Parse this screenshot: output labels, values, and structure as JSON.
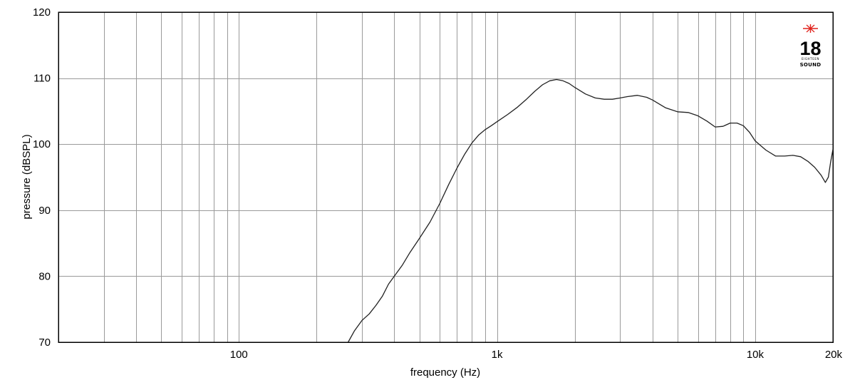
{
  "chart_data": {
    "type": "line",
    "xlabel": "frequency (Hz)",
    "ylabel": "pressure (dBSPL)",
    "x_scale": "log",
    "xlim": [
      20,
      20000
    ],
    "ylim": [
      70,
      120
    ],
    "grid": true,
    "x_tick_labels": [
      {
        "value": 100,
        "label": "100"
      },
      {
        "value": 1000,
        "label": "1k"
      },
      {
        "value": 10000,
        "label": "10k"
      },
      {
        "value": 20000,
        "label": "20k"
      }
    ],
    "y_tick_labels": [
      {
        "value": 70,
        "label": "70"
      },
      {
        "value": 80,
        "label": "80"
      },
      {
        "value": 90,
        "label": "90"
      },
      {
        "value": 100,
        "label": "100"
      },
      {
        "value": 110,
        "label": "110"
      },
      {
        "value": 120,
        "label": "120"
      }
    ],
    "series": [
      {
        "color": "#222222",
        "points": [
          [
            265,
            70.0
          ],
          [
            280,
            71.7
          ],
          [
            300,
            73.3
          ],
          [
            320,
            74.3
          ],
          [
            340,
            75.6
          ],
          [
            360,
            77.0
          ],
          [
            380,
            78.8
          ],
          [
            400,
            80.0
          ],
          [
            430,
            81.7
          ],
          [
            460,
            83.6
          ],
          [
            500,
            85.7
          ],
          [
            550,
            88.2
          ],
          [
            600,
            91.0
          ],
          [
            650,
            93.9
          ],
          [
            700,
            96.4
          ],
          [
            750,
            98.5
          ],
          [
            800,
            100.2
          ],
          [
            850,
            101.4
          ],
          [
            900,
            102.2
          ],
          [
            950,
            102.8
          ],
          [
            1000,
            103.4
          ],
          [
            1100,
            104.5
          ],
          [
            1200,
            105.6
          ],
          [
            1300,
            106.8
          ],
          [
            1400,
            108.0
          ],
          [
            1500,
            109.0
          ],
          [
            1600,
            109.6
          ],
          [
            1700,
            109.8
          ],
          [
            1800,
            109.6
          ],
          [
            1900,
            109.2
          ],
          [
            2000,
            108.6
          ],
          [
            2200,
            107.6
          ],
          [
            2400,
            107.0
          ],
          [
            2600,
            106.8
          ],
          [
            2800,
            106.8
          ],
          [
            3000,
            107.0
          ],
          [
            3200,
            107.2
          ],
          [
            3500,
            107.4
          ],
          [
            3800,
            107.1
          ],
          [
            4000,
            106.7
          ],
          [
            4500,
            105.5
          ],
          [
            5000,
            104.9
          ],
          [
            5500,
            104.8
          ],
          [
            6000,
            104.3
          ],
          [
            6500,
            103.5
          ],
          [
            7000,
            102.6
          ],
          [
            7500,
            102.7
          ],
          [
            8000,
            103.2
          ],
          [
            8500,
            103.2
          ],
          [
            9000,
            102.8
          ],
          [
            9500,
            101.8
          ],
          [
            10000,
            100.5
          ],
          [
            11000,
            99.1
          ],
          [
            12000,
            98.2
          ],
          [
            13000,
            98.2
          ],
          [
            14000,
            98.3
          ],
          [
            15000,
            98.1
          ],
          [
            16000,
            97.4
          ],
          [
            17000,
            96.5
          ],
          [
            18000,
            95.3
          ],
          [
            18700,
            94.2
          ],
          [
            19200,
            95.0
          ],
          [
            19600,
            97.3
          ],
          [
            20000,
            99.2
          ]
        ]
      }
    ]
  },
  "logo": {
    "number": "18",
    "small_text": "EIGHTEEN",
    "word": "SOUND",
    "star_color": "#e0201a"
  }
}
